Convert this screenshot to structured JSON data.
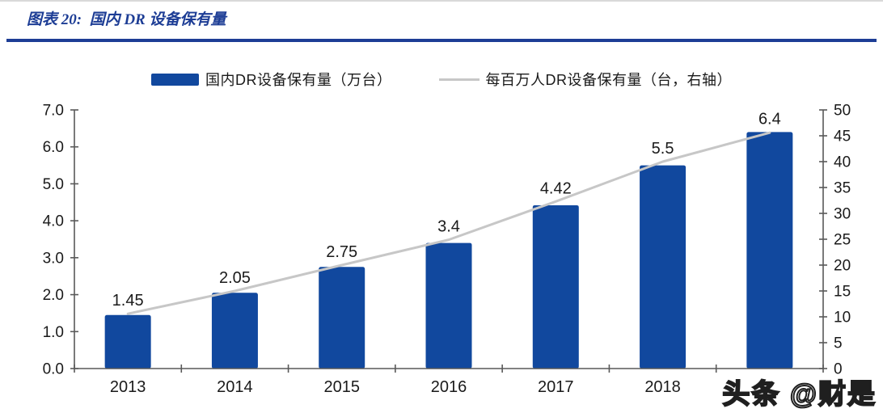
{
  "header": {
    "title": "图表 20:  国内 DR 设备保有量"
  },
  "watermark": {
    "text": "头条 @财是"
  },
  "colors": {
    "accent_blue": "#1d3d95",
    "bar_blue": "#11489e",
    "line_gray": "#c7c7c7",
    "axis_gray": "#595959",
    "text_dark": "#1a1a1a",
    "hairline_gray": "#d9d9d9"
  },
  "chart_data": {
    "type": "bar",
    "title": "国内 DR 设备保有量",
    "categories": [
      "2013",
      "2014",
      "2015",
      "2016",
      "2017",
      "2018",
      ""
    ],
    "series": [
      {
        "name": "国内DR设备保有量（万台）",
        "type": "bar",
        "axis": "left",
        "values": [
          1.45,
          2.05,
          2.75,
          3.4,
          4.42,
          5.5,
          6.4
        ],
        "labels": [
          "1.45",
          "2.05",
          "2.75",
          "3.4",
          "4.42",
          "5.5",
          "6.4"
        ],
        "color": "#11489e"
      },
      {
        "name": "每百万人DR设备保有量（台，右轴）",
        "type": "line",
        "axis": "right",
        "values": [
          10.6,
          15.0,
          20.0,
          24.9,
          32.3,
          40.0,
          45.6
        ],
        "values_estimated": true,
        "color": "#c7c7c7"
      }
    ],
    "left_axis": {
      "min": 0,
      "max": 7,
      "step": 1,
      "tick_labels": [
        "0.0",
        "1.0",
        "2.0",
        "3.0",
        "4.0",
        "5.0",
        "6.0",
        "7.0"
      ]
    },
    "right_axis": {
      "min": 0,
      "max": 50,
      "step": 5,
      "tick_labels": [
        "0",
        "5",
        "10",
        "15",
        "20",
        "25",
        "30",
        "35",
        "40",
        "45",
        "50"
      ]
    },
    "legend_position": "top",
    "grid": false
  }
}
